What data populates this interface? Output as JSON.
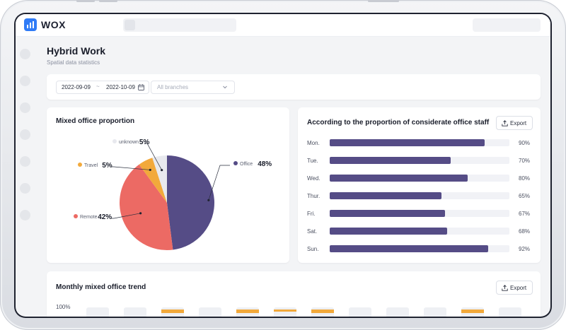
{
  "app": {
    "name": "WOX"
  },
  "page": {
    "title": "Hybrid Work",
    "subtitle": "Spatial data statistics"
  },
  "filters": {
    "date_start": "2022-09-09",
    "date_sep": "~",
    "date_end": "2022-10-09",
    "branch_placeholder": "All branches"
  },
  "pie": {
    "title": "Mixed office proportion",
    "slices": [
      {
        "name": "Office",
        "value": "48%",
        "color": "#554c86"
      },
      {
        "name": "Remote",
        "value": "42%",
        "color": "#ec6a64"
      },
      {
        "name": "Travel",
        "value": "5%",
        "color": "#f2a93b"
      },
      {
        "name": "unknown",
        "value": "5%",
        "color": "#e8e9ee"
      }
    ]
  },
  "bars": {
    "title": "According to the proportion of considerate office staff",
    "export_label": "Export",
    "rows": [
      {
        "day": "Mon.",
        "value": 90,
        "label": "90%"
      },
      {
        "day": "Tue.",
        "value": 70,
        "label": "70%"
      },
      {
        "day": "Wed.",
        "value": 80,
        "label": "80%"
      },
      {
        "day": "Thur.",
        "value": 65,
        "label": "65%"
      },
      {
        "day": "Fri.",
        "value": 67,
        "label": "67%"
      },
      {
        "day": "Sat.",
        "value": 68,
        "label": "68%"
      },
      {
        "day": "Sun.",
        "value": 92,
        "label": "92%"
      }
    ]
  },
  "trend": {
    "title": "Monthly mixed office trend",
    "export_label": "Export",
    "y_top": "100%"
  },
  "chart_data": [
    {
      "type": "pie",
      "title": "Mixed office proportion",
      "categories": [
        "Office",
        "Remote",
        "Travel",
        "unknown"
      ],
      "values": [
        48,
        42,
        5,
        5
      ]
    },
    {
      "type": "bar",
      "title": "According to the proportion of considerate office staff",
      "categories": [
        "Mon.",
        "Tue.",
        "Wed.",
        "Thur.",
        "Fri.",
        "Sat.",
        "Sun."
      ],
      "values": [
        90,
        70,
        80,
        65,
        67,
        68,
        92
      ],
      "ylim": [
        0,
        100
      ]
    }
  ]
}
